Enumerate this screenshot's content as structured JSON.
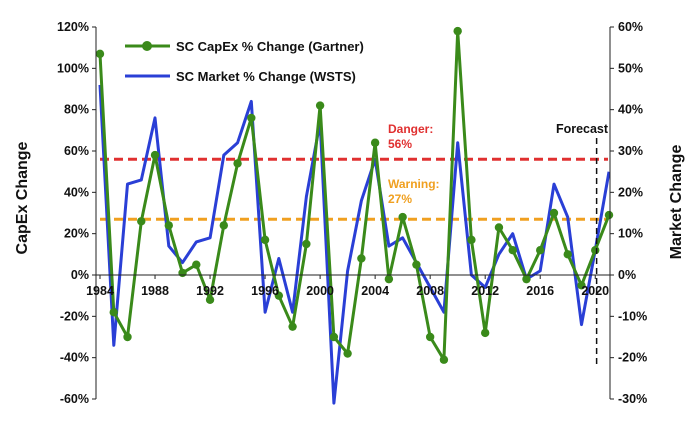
{
  "chart_data": {
    "type": "line",
    "title": "",
    "x": [
      1984,
      1985,
      1986,
      1987,
      1988,
      1989,
      1990,
      1991,
      1992,
      1993,
      1994,
      1995,
      1996,
      1997,
      1998,
      1999,
      2000,
      2001,
      2002,
      2003,
      2004,
      2005,
      2006,
      2007,
      2008,
      2009,
      2010,
      2011,
      2012,
      2013,
      2014,
      2015,
      2016,
      2017,
      2018,
      2019,
      2020,
      2021
    ],
    "x_ticks": [
      "1984",
      "1988",
      "1992",
      "1996",
      "2000",
      "2004",
      "2008",
      "2012",
      "2016",
      "2020"
    ],
    "x_tick_values": [
      1984,
      1988,
      1992,
      1996,
      2000,
      2004,
      2008,
      2012,
      2016,
      2020
    ],
    "ylabel": "CapEx Change",
    "y2label": "Market Change",
    "ylim": [
      -60,
      120
    ],
    "y2lim": [
      -30,
      60
    ],
    "y_ticks": [
      "-60%",
      "-40%",
      "-20%",
      "0%",
      "20%",
      "40%",
      "60%",
      "80%",
      "100%",
      "120%"
    ],
    "y_tick_values": [
      -60,
      -40,
      -20,
      0,
      20,
      40,
      60,
      80,
      100,
      120
    ],
    "y2_ticks": [
      "-30%",
      "-20%",
      "-10%",
      "0%",
      "10%",
      "20%",
      "30%",
      "40%",
      "50%",
      "60%"
    ],
    "y2_tick_values": [
      -30,
      -20,
      -10,
      0,
      10,
      20,
      30,
      40,
      50,
      60
    ],
    "series": [
      {
        "name": "SC CapEx % Change (Gartner)",
        "axis": "left",
        "color": "#3a8a1a",
        "marker": "circle",
        "values": [
          107,
          -18,
          -30,
          26,
          58,
          24,
          1,
          5,
          -12,
          24,
          54,
          76,
          17,
          -10,
          -25,
          15,
          82,
          -30,
          -38,
          8,
          64,
          -2,
          28,
          5,
          -30,
          -41,
          118,
          17,
          -28,
          23,
          12,
          -2,
          12,
          30,
          10,
          -5,
          12,
          29
        ]
      },
      {
        "name": "SC Market % Change (WSTS)",
        "axis": "right",
        "color": "#2a3fd6",
        "marker": "none",
        "values": [
          46,
          -17,
          22,
          23,
          38,
          7,
          3,
          8,
          9,
          29,
          32,
          42,
          -9,
          4,
          -9,
          19,
          37,
          -31,
          1,
          18,
          28,
          7,
          9,
          3,
          -3,
          -9,
          32,
          0,
          -3,
          5,
          10,
          -1,
          1,
          22,
          14,
          -12,
          6,
          25
        ]
      }
    ],
    "reference_lines": [
      {
        "label_line1": "Danger:",
        "label_line2": "56%",
        "value": 56,
        "axis": "left",
        "color": "#e03030"
      },
      {
        "label_line1": "Warning:",
        "label_line2": "27%",
        "value": 27,
        "axis": "left",
        "color": "#f0a020"
      }
    ],
    "forecast": {
      "label": "Forecast",
      "x": 2020.1
    },
    "legend_placement": "top-left",
    "grid": false
  }
}
